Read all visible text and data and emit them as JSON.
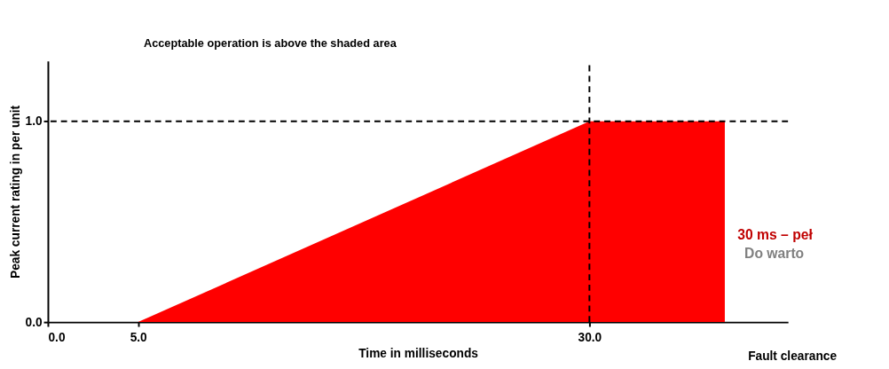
{
  "chart_data": {
    "type": "area",
    "xlabel": "Time in milliseconds",
    "ylabel": "Peak current rating in per unit",
    "x": [
      5,
      30,
      37.5
    ],
    "series": [
      {
        "color": "#ff0000",
        "values": [
          0,
          1,
          1
        ]
      }
    ],
    "xlim": [
      0,
      41
    ],
    "xticks": [
      {
        "value": 0,
        "label": "0.0"
      },
      {
        "value": 5,
        "label": "5.0"
      },
      {
        "value": 30,
        "label": "30.0"
      }
    ],
    "ylim": [
      0,
      1.3
    ],
    "yticks": [
      {
        "value": 0,
        "label": "0.0"
      },
      {
        "value": 1,
        "label": "1.0"
      }
    ],
    "ref_lines": [
      {
        "axis": "y",
        "value": 1,
        "line_style": "dashed",
        "color": "#000000"
      },
      {
        "axis": "x",
        "value": 30,
        "line_style": "dashed",
        "color": "#000000"
      }
    ],
    "annotations": [
      "Acceptable operation is above the shaded area",
      "Fault clearance",
      "30 ms – peł",
      "Do warto"
    ],
    "grid": false
  }
}
